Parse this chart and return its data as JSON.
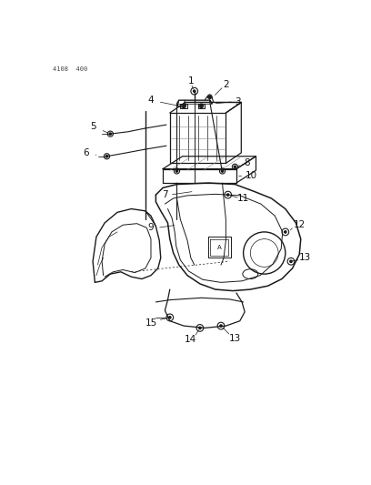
{
  "page_id": "4108 400",
  "bg": "#ffffff",
  "lc": "#1a1a1a",
  "figsize": [
    4.08,
    5.33
  ],
  "dpi": 100
}
